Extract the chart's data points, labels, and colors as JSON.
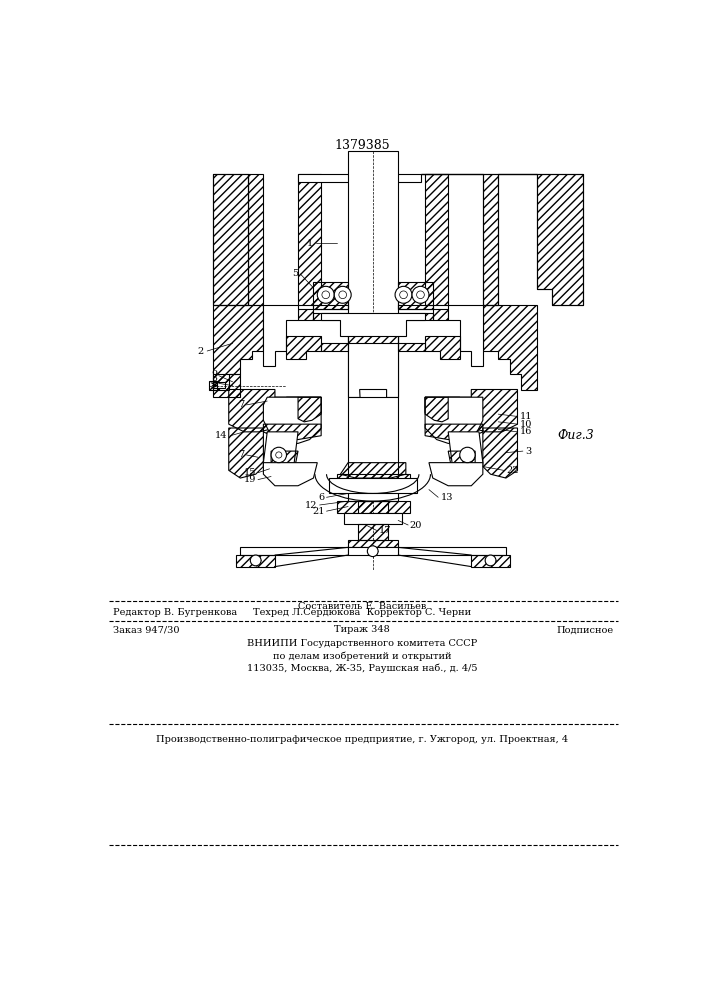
{
  "title_number": "1379385",
  "fig_label": "Фиг.3",
  "bg_color": "#ffffff",
  "line_color": "#000000",
  "footer": {
    "editor_line1": "Составитель Е. Васильев",
    "editor_line2": "Редактор В. Бугренкова",
    "tech_line2": "Техред Л.Сердюкова  Корректор С. Черни",
    "order": "Заказ 947/30",
    "tirazh": "Тираж 348",
    "podpisnoe": "Подписное",
    "vniipи": "ВНИИПИ Государственного комитета СССР",
    "po_delam": "по делам изобретений и открытий",
    "address": "113035, Москва, Ж-35, Раушская наб., д. 4/5",
    "enterprise": "Производственно-полиграфическое предприятие, г. Ужгород, ул. Проектная, 4"
  },
  "lw": 0.8,
  "lw_thin": 0.5,
  "lw_thick": 1.2
}
